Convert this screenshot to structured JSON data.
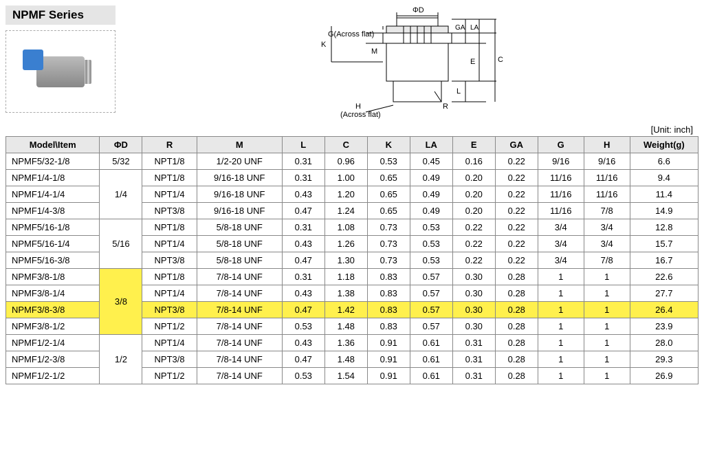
{
  "title": "NPMF Series",
  "unit_label": "[Unit: inch]",
  "diagram_labels": {
    "phiD": "ΦD",
    "G": "G(Across flat)",
    "K": "K",
    "M": "M",
    "GA": "GA",
    "LA": "LA",
    "E": "E",
    "L": "L",
    "C": "C",
    "R": "R",
    "H": "H",
    "H2": "(Across flat)"
  },
  "table": {
    "headers": [
      "Model\\Item",
      "ΦD",
      "R",
      "M",
      "L",
      "C",
      "K",
      "LA",
      "E",
      "GA",
      "G",
      "H",
      "Weight(g)"
    ],
    "col_widths": [
      "110px",
      "50px",
      "64px",
      "100px",
      "50px",
      "50px",
      "50px",
      "50px",
      "50px",
      "50px",
      "54px",
      "54px",
      "80px"
    ],
    "phid_groups": [
      {
        "value": "5/32",
        "start": 0,
        "span": 1,
        "highlight": false
      },
      {
        "value": "1/4",
        "start": 1,
        "span": 3,
        "highlight": false
      },
      {
        "value": "5/16",
        "start": 4,
        "span": 3,
        "highlight": false
      },
      {
        "value": "3/8",
        "start": 7,
        "span": 4,
        "highlight": true
      },
      {
        "value": "1/2",
        "start": 11,
        "span": 3,
        "highlight": false
      }
    ],
    "highlight_row": 9,
    "rows": [
      {
        "model": "NPMF5/32-1/8",
        "R": "NPT1/8",
        "M": "1/2-20 UNF",
        "L": "0.31",
        "C": "0.96",
        "K": "0.53",
        "LA": "0.45",
        "E": "0.16",
        "GA": "0.22",
        "G": "9/16",
        "H": "9/16",
        "W": "6.6"
      },
      {
        "model": "NPMF1/4-1/8",
        "R": "NPT1/8",
        "M": "9/16-18 UNF",
        "L": "0.31",
        "C": "1.00",
        "K": "0.65",
        "LA": "0.49",
        "E": "0.20",
        "GA": "0.22",
        "G": "11/16",
        "H": "11/16",
        "W": "9.4"
      },
      {
        "model": "NPMF1/4-1/4",
        "R": "NPT1/4",
        "M": "9/16-18 UNF",
        "L": "0.43",
        "C": "1.20",
        "K": "0.65",
        "LA": "0.49",
        "E": "0.20",
        "GA": "0.22",
        "G": "11/16",
        "H": "11/16",
        "W": "11.4"
      },
      {
        "model": "NPMF1/4-3/8",
        "R": "NPT3/8",
        "M": "9/16-18 UNF",
        "L": "0.47",
        "C": "1.24",
        "K": "0.65",
        "LA": "0.49",
        "E": "0.20",
        "GA": "0.22",
        "G": "11/16",
        "H": "7/8",
        "W": "14.9"
      },
      {
        "model": "NPMF5/16-1/8",
        "R": "NPT1/8",
        "M": "5/8-18 UNF",
        "L": "0.31",
        "C": "1.08",
        "K": "0.73",
        "LA": "0.53",
        "E": "0.22",
        "GA": "0.22",
        "G": "3/4",
        "H": "3/4",
        "W": "12.8"
      },
      {
        "model": "NPMF5/16-1/4",
        "R": "NPT1/4",
        "M": "5/8-18 UNF",
        "L": "0.43",
        "C": "1.26",
        "K": "0.73",
        "LA": "0.53",
        "E": "0.22",
        "GA": "0.22",
        "G": "3/4",
        "H": "3/4",
        "W": "15.7"
      },
      {
        "model": "NPMF5/16-3/8",
        "R": "NPT3/8",
        "M": "5/8-18 UNF",
        "L": "0.47",
        "C": "1.30",
        "K": "0.73",
        "LA": "0.53",
        "E": "0.22",
        "GA": "0.22",
        "G": "3/4",
        "H": "7/8",
        "W": "16.7"
      },
      {
        "model": "NPMF3/8-1/8",
        "R": "NPT1/8",
        "M": "7/8-14 UNF",
        "L": "0.31",
        "C": "1.18",
        "K": "0.83",
        "LA": "0.57",
        "E": "0.30",
        "GA": "0.28",
        "G": "1",
        "H": "1",
        "W": "22.6"
      },
      {
        "model": "NPMF3/8-1/4",
        "R": "NPT1/4",
        "M": "7/8-14 UNF",
        "L": "0.43",
        "C": "1.38",
        "K": "0.83",
        "LA": "0.57",
        "E": "0.30",
        "GA": "0.28",
        "G": "1",
        "H": "1",
        "W": "27.7"
      },
      {
        "model": "NPMF3/8-3/8",
        "R": "NPT3/8",
        "M": "7/8-14 UNF",
        "L": "0.47",
        "C": "1.42",
        "K": "0.83",
        "LA": "0.57",
        "E": "0.30",
        "GA": "0.28",
        "G": "1",
        "H": "1",
        "W": "26.4"
      },
      {
        "model": "NPMF3/8-1/2",
        "R": "NPT1/2",
        "M": "7/8-14 UNF",
        "L": "0.53",
        "C": "1.48",
        "K": "0.83",
        "LA": "0.57",
        "E": "0.30",
        "GA": "0.28",
        "G": "1",
        "H": "1",
        "W": "23.9"
      },
      {
        "model": "NPMF1/2-1/4",
        "R": "NPT1/4",
        "M": "7/8-14 UNF",
        "L": "0.43",
        "C": "1.36",
        "K": "0.91",
        "LA": "0.61",
        "E": "0.31",
        "GA": "0.28",
        "G": "1",
        "H": "1",
        "W": "28.0"
      },
      {
        "model": "NPMF1/2-3/8",
        "R": "NPT3/8",
        "M": "7/8-14 UNF",
        "L": "0.47",
        "C": "1.48",
        "K": "0.91",
        "LA": "0.61",
        "E": "0.31",
        "GA": "0.28",
        "G": "1",
        "H": "1",
        "W": "29.3"
      },
      {
        "model": "NPMF1/2-1/2",
        "R": "NPT1/2",
        "M": "7/8-14 UNF",
        "L": "0.53",
        "C": "1.54",
        "K": "0.91",
        "LA": "0.61",
        "E": "0.31",
        "GA": "0.28",
        "G": "1",
        "H": "1",
        "W": "26.9"
      }
    ]
  }
}
